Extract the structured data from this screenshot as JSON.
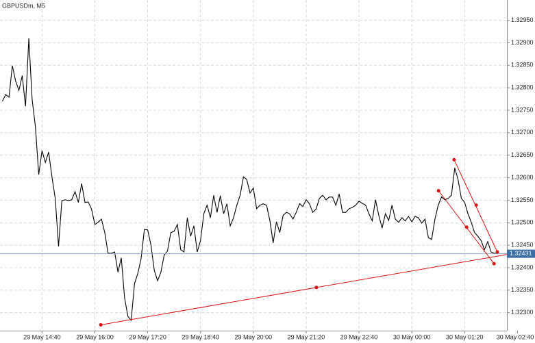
{
  "chart_data": {
    "type": "line",
    "title": "GBPUSDm, M5",
    "series": [
      {
        "color": "#000000",
        "values": [
          1.3277,
          1.32785,
          1.32779,
          1.32849,
          1.32815,
          1.32794,
          1.32827,
          1.32759,
          1.3291,
          1.32774,
          1.32713,
          1.32607,
          1.3266,
          1.32634,
          1.32657,
          1.32602,
          1.32554,
          1.32447,
          1.32549,
          1.32551,
          1.32549,
          1.32551,
          1.32569,
          1.32545,
          1.32587,
          1.32545,
          1.32546,
          1.3253,
          1.32496,
          1.32501,
          1.32508,
          1.32478,
          1.32432,
          1.32432,
          1.32435,
          1.3239,
          1.32422,
          1.32333,
          1.32292,
          1.32283,
          1.32364,
          1.32387,
          1.3242,
          1.32485,
          1.32484,
          1.3245,
          1.32394,
          1.32371,
          1.3239,
          1.32428,
          1.32437,
          1.32478,
          1.32481,
          1.32496,
          1.3244,
          1.32435,
          1.32511,
          1.3247,
          1.32493,
          1.32435,
          1.3246,
          1.3252,
          1.32539,
          1.32511,
          1.32561,
          1.32523,
          1.3256,
          1.3252,
          1.32542,
          1.32493,
          1.32511,
          1.32539,
          1.32561,
          1.32602,
          1.32596,
          1.32566,
          1.32577,
          1.32531,
          1.32539,
          1.32542,
          1.32539,
          1.32505,
          1.32455,
          1.32502,
          1.32478,
          1.32516,
          1.32523,
          1.3252,
          1.32508,
          1.32523,
          1.32542,
          1.32536,
          1.32551,
          1.32542,
          1.32523,
          1.3253,
          1.32554,
          1.32561,
          1.32551,
          1.32557,
          1.32557,
          1.32539,
          1.32564,
          1.32523,
          1.32523,
          1.32531,
          1.32534,
          1.32539,
          1.32548,
          1.32543,
          1.32539,
          1.3252,
          1.32504,
          1.32551,
          1.32516,
          1.32488,
          1.3252,
          1.32505,
          1.32539,
          1.32508,
          1.32501,
          1.32511,
          1.32504,
          1.32514,
          1.32502,
          1.32514,
          1.32511,
          1.32499,
          1.32508,
          1.32467,
          1.32463,
          1.32508,
          1.32539,
          1.32557,
          1.32551,
          1.32554,
          1.32561,
          1.32622,
          1.32596,
          1.32554,
          1.32545,
          1.3252,
          1.32501,
          1.32478,
          1.3247,
          1.3246,
          1.3244,
          1.32458,
          1.32435,
          1.32432,
          1.32431
        ]
      }
    ],
    "xlim": [
      -0.73,
      152.8
    ],
    "xticks": [
      {
        "value": 12,
        "label": "29 May 14:40"
      },
      {
        "value": 28,
        "label": "29 May 16:00"
      },
      {
        "value": 44,
        "label": "29 May 17:20"
      },
      {
        "value": 60,
        "label": "29 May 18:40"
      },
      {
        "value": 76,
        "label": "29 May 20:00"
      },
      {
        "value": 92,
        "label": "29 May 21:20"
      },
      {
        "value": 108,
        "label": "29 May 22:40"
      },
      {
        "value": 124,
        "label": "30 May 00:00"
      },
      {
        "value": 140,
        "label": "30 May 01:20"
      },
      {
        "value": 156,
        "label": "30 May 02:40"
      }
    ],
    "ylim": [
      1.3226,
      1.32995
    ],
    "yticks": [
      {
        "value": 1.323,
        "label": "1.32300"
      },
      {
        "value": 1.3235,
        "label": "1.32350"
      },
      {
        "value": 1.324,
        "label": "1.32400"
      },
      {
        "value": 1.3245,
        "label": "1.32450"
      },
      {
        "value": 1.325,
        "label": "1.32500"
      },
      {
        "value": 1.3255,
        "label": "1.32550"
      },
      {
        "value": 1.326,
        "label": "1.32600"
      },
      {
        "value": 1.3265,
        "label": "1.32650"
      },
      {
        "value": 1.327,
        "label": "1.32700"
      },
      {
        "value": 1.3275,
        "label": "1.32750"
      },
      {
        "value": 1.328,
        "label": "1.32800"
      },
      {
        "value": 1.3285,
        "label": "1.32850"
      },
      {
        "value": 1.329,
        "label": "1.32900"
      },
      {
        "value": 1.3295,
        "label": "1.32950"
      }
    ],
    "grid": true,
    "current_price": 1.32431,
    "trendlines": [
      {
        "color": "#e01010",
        "ray": true,
        "x": [
          29.8,
          95.1
        ],
        "y": [
          1.32273,
          1.32356
        ]
      },
      {
        "color": "#e01010",
        "ray": false,
        "x": [
          132.1,
          140.6,
          148.9
        ],
        "y": [
          1.32571,
          1.3249,
          1.32409
        ]
      },
      {
        "color": "#e01010",
        "ray": false,
        "x": [
          136.8,
          143.5,
          149.9
        ],
        "y": [
          1.3264,
          1.32539,
          1.32435
        ]
      }
    ]
  }
}
